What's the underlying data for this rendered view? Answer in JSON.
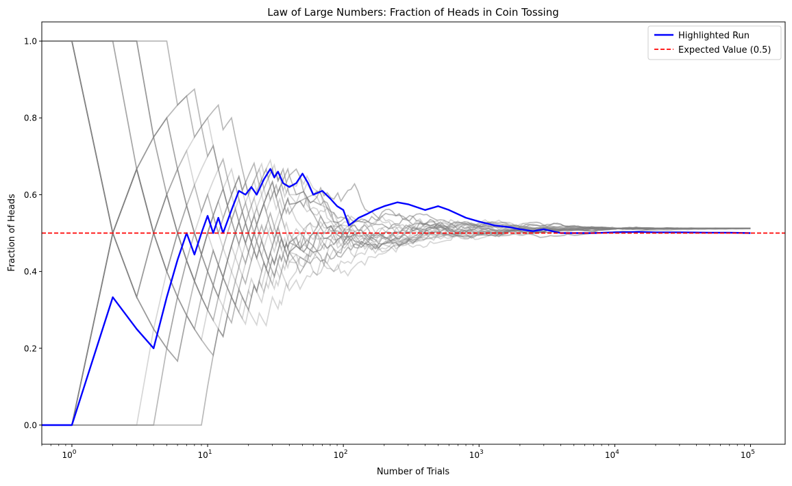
{
  "chart_data": {
    "type": "line",
    "title": "Law of Large Numbers: Fraction of Heads in Coin Tossing",
    "xlabel": "Number of Trials",
    "ylabel": "Fraction of Heads",
    "xscale": "log",
    "xlim": [
      0.6,
      180000
    ],
    "ylim": [
      -0.05,
      1.05
    ],
    "grid": false,
    "legend_placement": "top-right",
    "x_ticks": [
      {
        "value": 1,
        "base": "10",
        "exp": "0"
      },
      {
        "value": 10,
        "base": "10",
        "exp": "1"
      },
      {
        "value": 100,
        "base": "10",
        "exp": "2"
      },
      {
        "value": 1000,
        "base": "10",
        "exp": "3"
      },
      {
        "value": 10000,
        "base": "10",
        "exp": "4"
      },
      {
        "value": 100000,
        "base": "10",
        "exp": "5"
      }
    ],
    "y_ticks": [
      {
        "value": 0.0,
        "label": "0.0"
      },
      {
        "value": 0.2,
        "label": "0.2"
      },
      {
        "value": 0.4,
        "label": "0.4"
      },
      {
        "value": 0.6,
        "label": "0.6"
      },
      {
        "value": 0.8,
        "label": "0.8"
      },
      {
        "value": 1.0,
        "label": "1.0"
      }
    ],
    "series": [
      {
        "name": "Highlighted Run",
        "color": "#0000ff",
        "style": "solid",
        "x": [
          0.55,
          1,
          2,
          3,
          4,
          5,
          6,
          7,
          8,
          9,
          10,
          11,
          12,
          13,
          15,
          17,
          19,
          21,
          23,
          26,
          29,
          31,
          33,
          36,
          40,
          45,
          50,
          55,
          60,
          70,
          80,
          90,
          100,
          110,
          120,
          130,
          150,
          170,
          200,
          250,
          300,
          400,
          500,
          600,
          800,
          1000,
          1300,
          1700,
          2000,
          2500,
          3000,
          4000,
          5000,
          7000,
          10000,
          15000,
          20000,
          30000,
          50000,
          70000,
          100000
        ],
        "y": [
          0.0,
          0.0,
          0.333,
          0.25,
          0.2,
          0.333,
          0.43,
          0.5,
          0.444,
          0.5,
          0.545,
          0.5,
          0.54,
          0.5,
          0.56,
          0.61,
          0.6,
          0.62,
          0.6,
          0.64,
          0.667,
          0.645,
          0.66,
          0.63,
          0.62,
          0.63,
          0.655,
          0.63,
          0.6,
          0.61,
          0.59,
          0.57,
          0.56,
          0.52,
          0.53,
          0.54,
          0.55,
          0.56,
          0.57,
          0.58,
          0.575,
          0.56,
          0.57,
          0.56,
          0.54,
          0.53,
          0.52,
          0.515,
          0.51,
          0.505,
          0.51,
          0.5,
          0.5,
          0.5,
          0.502,
          0.503,
          0.502,
          0.502,
          0.501,
          0.501,
          0.5
        ]
      },
      {
        "name": "Expected Value (0.5)",
        "color": "#ff0000",
        "style": "dashed",
        "x": [
          0.6,
          180000
        ],
        "y": [
          0.5,
          0.5
        ]
      }
    ],
    "background_runs": {
      "color": "#808080",
      "count": 24,
      "note_x": [
        1,
        2,
        3,
        4,
        5,
        7,
        10,
        15,
        20,
        30,
        50,
        80,
        120,
        200,
        300,
        500,
        800,
        1200,
        2000,
        3000,
        5000,
        8000,
        12000,
        20000,
        35000,
        60000,
        100000
      ]
    }
  },
  "legend": {
    "items": [
      {
        "label": "Highlighted Run",
        "color": "#0000ff",
        "style": "solid"
      },
      {
        "label": "Expected Value (0.5)",
        "color": "#ff0000",
        "style": "dashed"
      }
    ]
  }
}
